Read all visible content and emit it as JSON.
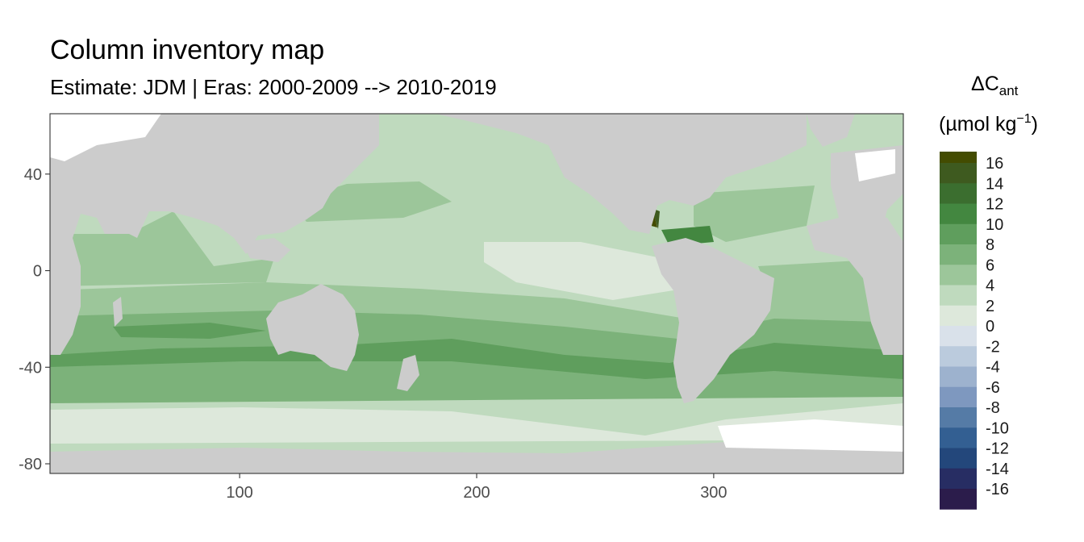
{
  "title": "Column inventory map",
  "subtitle": "Estimate: JDM  | Eras: 2000-2009 --> 2010-2019",
  "colors": {
    "land": "#cccccc",
    "panel_border": "#333333",
    "no_data": "#ffffff"
  },
  "axes": {
    "x": {
      "range": [
        20,
        380
      ],
      "ticks": [
        100,
        200,
        300
      ],
      "labels": [
        "100",
        "200",
        "300"
      ]
    },
    "y": {
      "range": [
        -84,
        65
      ],
      "ticks": [
        40,
        0,
        -40,
        -80
      ],
      "labels": [
        "40",
        "0",
        "-40",
        "-80"
      ]
    }
  },
  "legend": {
    "title_main": "ΔC",
    "title_sub": "ant",
    "unit_open": "(µmol kg",
    "unit_sup": "−1",
    "unit_close": ")",
    "levels": [
      {
        "label": "16",
        "color": "#434C01"
      },
      {
        "label": "14",
        "color": "#3E5A1F"
      },
      {
        "label": "12",
        "color": "#3B6E2F"
      },
      {
        "label": "10",
        "color": "#438740"
      },
      {
        "label": "8",
        "color": "#5F9E5D"
      },
      {
        "label": "6",
        "color": "#7CB27A"
      },
      {
        "label": "4",
        "color": "#9CC69A"
      },
      {
        "label": "2",
        "color": "#BFDABE"
      },
      {
        "label": "0",
        "color": "#DDE8DB"
      },
      {
        "label": "-2",
        "color": "#D9E1EA"
      },
      {
        "label": "-4",
        "color": "#BBCBDD"
      },
      {
        "label": "-6",
        "color": "#9DB2CE"
      },
      {
        "label": "-8",
        "color": "#7E98BF"
      },
      {
        "label": "-10",
        "color": "#557BA6"
      },
      {
        "label": "-12",
        "color": "#335F92"
      },
      {
        "label": "-14",
        "color": "#23477B"
      },
      {
        "label": "-16",
        "color": "#272D63"
      }
    ],
    "bottom_color": "#2B1C4B"
  }
}
